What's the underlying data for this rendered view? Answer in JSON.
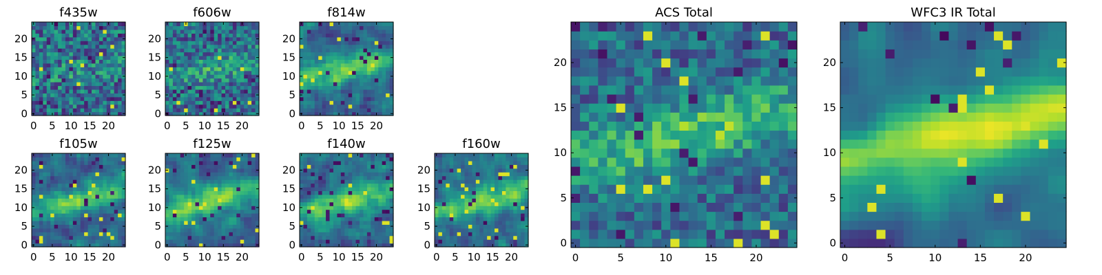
{
  "chart_data": [
    {
      "type": "heatmap",
      "title": "f435w",
      "xlim": [
        0,
        25
      ],
      "ylim": [
        0,
        25
      ],
      "xticks": [
        0,
        5,
        10,
        15,
        20
      ],
      "yticks": [
        0,
        5,
        10,
        15,
        20
      ],
      "colormap": "viridis",
      "feature": "noise",
      "seed": 11
    },
    {
      "type": "heatmap",
      "title": "f606w",
      "xlim": [
        0,
        25
      ],
      "ylim": [
        0,
        25
      ],
      "xticks": [
        0,
        5,
        10,
        15,
        20
      ],
      "yticks": [
        0,
        5,
        10,
        15,
        20
      ],
      "colormap": "viridis",
      "feature": "faint-band",
      "seed": 23
    },
    {
      "type": "heatmap",
      "title": "f814w",
      "xlim": [
        0,
        25
      ],
      "ylim": [
        0,
        25
      ],
      "xticks": [
        0,
        5,
        10,
        15,
        20
      ],
      "yticks": [
        0,
        5,
        10,
        15,
        20
      ],
      "colormap": "viridis",
      "feature": "band",
      "seed": 37
    },
    {
      "type": "heatmap",
      "title": "f105w",
      "xlim": [
        0,
        25
      ],
      "ylim": [
        0,
        25
      ],
      "xticks": [
        0,
        5,
        10,
        15,
        20
      ],
      "yticks": [
        0,
        5,
        10,
        15,
        20
      ],
      "colormap": "viridis",
      "feature": "band",
      "seed": 41
    },
    {
      "type": "heatmap",
      "title": "f125w",
      "xlim": [
        0,
        25
      ],
      "ylim": [
        0,
        25
      ],
      "xticks": [
        0,
        5,
        10,
        15,
        20
      ],
      "yticks": [
        0,
        5,
        10,
        15,
        20
      ],
      "colormap": "viridis",
      "feature": "band",
      "seed": 53
    },
    {
      "type": "heatmap",
      "title": "f140w",
      "xlim": [
        0,
        25
      ],
      "ylim": [
        0,
        25
      ],
      "xticks": [
        0,
        5,
        10,
        15,
        20
      ],
      "yticks": [
        0,
        5,
        10,
        15,
        20
      ],
      "colormap": "viridis",
      "feature": "band",
      "seed": 67
    },
    {
      "type": "heatmap",
      "title": "f160w",
      "xlim": [
        0,
        25
      ],
      "ylim": [
        0,
        25
      ],
      "xticks": [
        0,
        5,
        10,
        15,
        20
      ],
      "yticks": [
        0,
        5,
        10,
        15,
        20
      ],
      "colormap": "viridis",
      "feature": "band",
      "seed": 79
    },
    {
      "type": "heatmap",
      "title": "ACS Total",
      "xlim": [
        0,
        25
      ],
      "ylim": [
        0,
        25
      ],
      "xticks": [
        0,
        5,
        10,
        15,
        20
      ],
      "yticks": [
        0,
        5,
        10,
        15,
        20
      ],
      "colormap": "viridis",
      "feature": "blocky-band",
      "seed": 83
    },
    {
      "type": "heatmap",
      "title": "WFC3 IR Total",
      "xlim": [
        0,
        25
      ],
      "ylim": [
        0,
        25
      ],
      "xticks": [
        0,
        5,
        10,
        15,
        20
      ],
      "yticks": [
        0,
        5,
        10,
        15,
        20
      ],
      "colormap": "viridis",
      "feature": "smooth-band",
      "seed": 97
    }
  ]
}
